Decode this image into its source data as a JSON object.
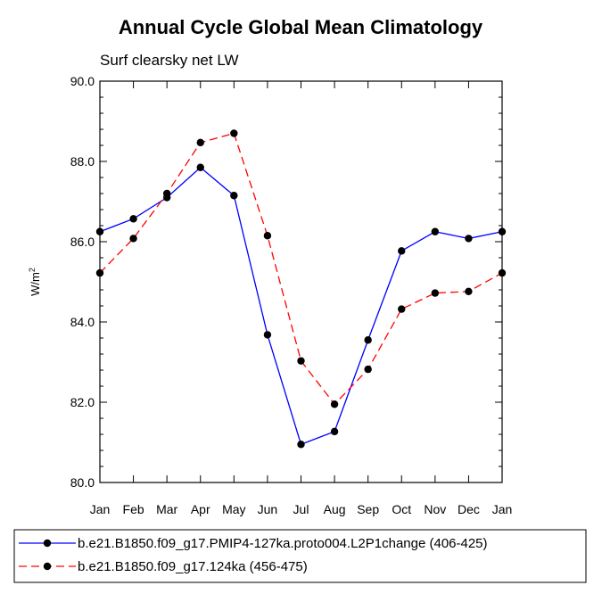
{
  "chart_data": {
    "type": "line",
    "title": "Annual Cycle Global Mean Climatology",
    "subtitle": "Surf clearsky net LW",
    "ylabel": "W/m",
    "ylabel_superscript": "2",
    "xlabel": "",
    "categories": [
      "Jan",
      "Feb",
      "Mar",
      "Apr",
      "May",
      "Jun",
      "Jul",
      "Aug",
      "Sep",
      "Oct",
      "Nov",
      "Dec",
      "Jan"
    ],
    "ylim": [
      80.0,
      90.0
    ],
    "yticks": [
      80.0,
      82.0,
      84.0,
      86.0,
      88.0,
      90.0
    ],
    "ytick_labels": [
      "80.0",
      "82.0",
      "84.0",
      "86.0",
      "88.0",
      "90.0"
    ],
    "grid": false,
    "legend_position": "bottom",
    "series": [
      {
        "name": "b.e21.B1850.f09_g17.PMIP4-127ka.proto004.L2P1change (406-425)",
        "color": "#0000ff",
        "dash": "solid",
        "values": [
          86.25,
          86.57,
          87.1,
          87.85,
          87.15,
          83.68,
          80.95,
          81.27,
          83.55,
          85.77,
          86.25,
          86.08,
          86.25
        ]
      },
      {
        "name": "b.e21.B1850.f09_g17.124ka (456-475)",
        "color": "#ff0000",
        "dash": "dashed",
        "values": [
          85.22,
          86.08,
          87.2,
          88.47,
          88.7,
          86.15,
          83.03,
          81.95,
          82.82,
          84.32,
          84.72,
          84.76,
          85.22
        ]
      }
    ]
  }
}
